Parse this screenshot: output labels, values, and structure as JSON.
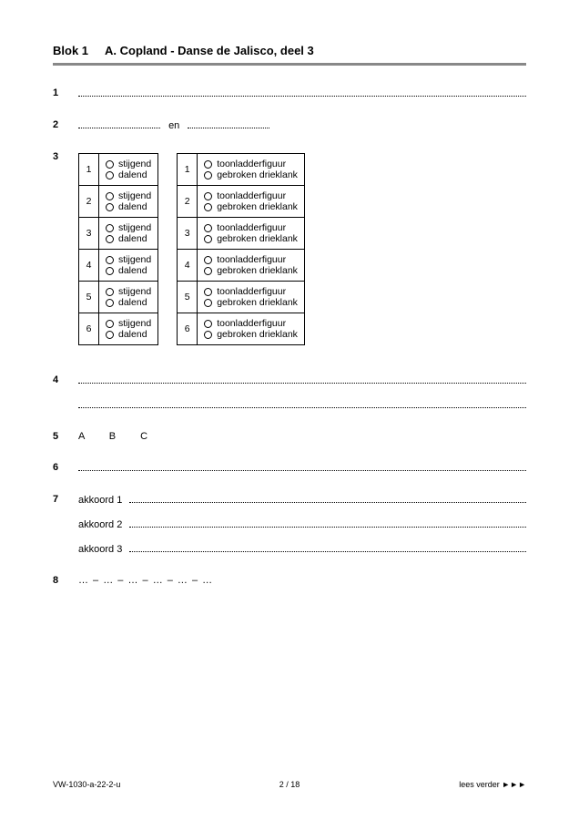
{
  "header": {
    "block": "Blok 1",
    "title": "A. Copland - Danse de Jalisco, deel 3"
  },
  "q1": {
    "num": "1"
  },
  "q2": {
    "num": "2",
    "mid": "en"
  },
  "q3": {
    "num": "3",
    "rows": [
      "1",
      "2",
      "3",
      "4",
      "5",
      "6"
    ],
    "left": {
      "a": "stijgend",
      "b": "dalend"
    },
    "right": {
      "a": "toonladderfiguur",
      "b": "gebroken drieklank"
    }
  },
  "q4": {
    "num": "4"
  },
  "q5": {
    "num": "5",
    "letters": "A  B  C"
  },
  "q6": {
    "num": "6"
  },
  "q7": {
    "num": "7",
    "labels": [
      "akkoord 1",
      "akkoord 2",
      "akkoord 3"
    ]
  },
  "q8": {
    "num": "8",
    "pattern": "… – … – … – … – … – …"
  },
  "footer": {
    "left": "VW-1030-a-22-2-u",
    "center": "2 / 18",
    "right": "lees verder ►►►"
  }
}
